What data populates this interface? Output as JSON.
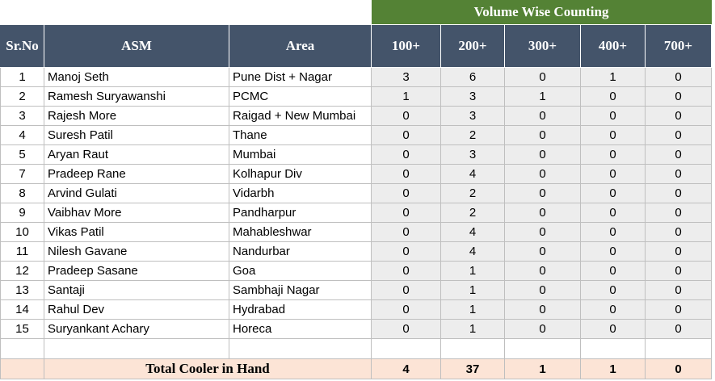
{
  "title": "Volume Wise Counting",
  "headers": {
    "sr_no": "Sr.No",
    "asm": "ASM",
    "area": "Area",
    "c100": "100+",
    "c200": "200+",
    "c300": "300+",
    "c400": "400+",
    "c700": "700+"
  },
  "rows": [
    {
      "sr": "1",
      "asm": "Manoj Seth",
      "area": "Pune Dist + Nagar",
      "c100": "3",
      "c200": "6",
      "c300": "0",
      "c400": "1",
      "c700": "0"
    },
    {
      "sr": "2",
      "asm": "Ramesh  Suryawanshi",
      "area": "PCMC",
      "c100": "1",
      "c200": "3",
      "c300": "1",
      "c400": "0",
      "c700": "0"
    },
    {
      "sr": "3",
      "asm": "Rajesh More",
      "area": "Raigad + New Mumbai",
      "c100": "0",
      "c200": "3",
      "c300": "0",
      "c400": "0",
      "c700": "0"
    },
    {
      "sr": "4",
      "asm": "Suresh Patil",
      "area": "Thane",
      "c100": "0",
      "c200": "2",
      "c300": "0",
      "c400": "0",
      "c700": "0"
    },
    {
      "sr": "5",
      "asm": "Aryan Raut",
      "area": "Mumbai",
      "c100": "0",
      "c200": "3",
      "c300": "0",
      "c400": "0",
      "c700": "0"
    },
    {
      "sr": "7",
      "asm": "Pradeep Rane",
      "area": "Kolhapur Div",
      "c100": "0",
      "c200": "4",
      "c300": "0",
      "c400": "0",
      "c700": "0"
    },
    {
      "sr": "8",
      "asm": "Arvind Gulati",
      "area": "Vidarbh",
      "c100": "0",
      "c200": "2",
      "c300": "0",
      "c400": "0",
      "c700": "0"
    },
    {
      "sr": "9",
      "asm": "Vaibhav More",
      "area": "Pandharpur",
      "c100": "0",
      "c200": "2",
      "c300": "0",
      "c400": "0",
      "c700": "0"
    },
    {
      "sr": "10",
      "asm": "Vikas Patil",
      "area": "Mahableshwar",
      "c100": "0",
      "c200": "4",
      "c300": "0",
      "c400": "0",
      "c700": "0"
    },
    {
      "sr": "11",
      "asm": "Nilesh Gavane",
      "area": "Nandurbar",
      "c100": "0",
      "c200": "4",
      "c300": "0",
      "c400": "0",
      "c700": "0"
    },
    {
      "sr": "12",
      "asm": "Pradeep Sasane",
      "area": "Goa",
      "c100": "0",
      "c200": "1",
      "c300": "0",
      "c400": "0",
      "c700": "0"
    },
    {
      "sr": "13",
      "asm": "Santaji",
      "area": "Sambhaji Nagar",
      "c100": "0",
      "c200": "1",
      "c300": "0",
      "c400": "0",
      "c700": "0"
    },
    {
      "sr": "14",
      "asm": "Rahul Dev",
      "area": "Hydrabad",
      "c100": "0",
      "c200": "1",
      "c300": "0",
      "c400": "0",
      "c700": "0"
    },
    {
      "sr": "15",
      "asm": "Suryankant Achary",
      "area": "Horeca",
      "c100": "0",
      "c200": "1",
      "c300": "0",
      "c400": "0",
      "c700": "0"
    }
  ],
  "total": {
    "label": "Total Cooler in Hand",
    "c100": "4",
    "c200": "37",
    "c300": "1",
    "c400": "1",
    "c700": "0"
  },
  "colors": {
    "title_bg": "#548235",
    "header_bg": "#44546a",
    "value_bg": "#ededed",
    "total_bg": "#fce4d6"
  }
}
